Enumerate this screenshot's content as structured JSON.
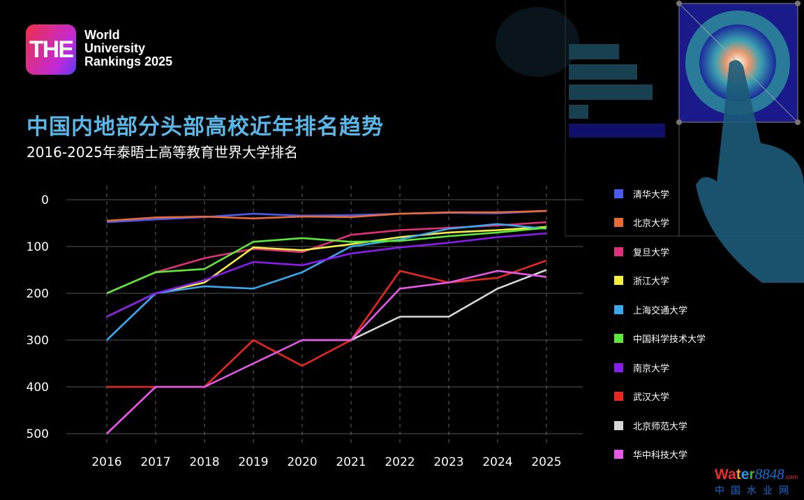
{
  "logo": {
    "mark": "THE",
    "line1": "World",
    "line2": "University",
    "line3": "Rankings 2025"
  },
  "header": {
    "title": "中国内地部分头部高校近年排名趋势",
    "subtitle": "2016-2025年泰晤士高等教育世界大学排名"
  },
  "watermark": {
    "brand": "Water8848",
    "suffix": ".com",
    "cn": "中国水业网"
  },
  "chart_data": {
    "type": "line",
    "title": "中国内地部分头部高校近年排名趋势",
    "subtitle": "2016-2025年泰晤士高等教育世界大学排名",
    "x": [
      "2016",
      "2017",
      "2018",
      "2019",
      "2020",
      "2021",
      "2022",
      "2023",
      "2024",
      "2025"
    ],
    "ylim": [
      0,
      500
    ],
    "y_inverted": true,
    "yticks": [
      "0",
      "100",
      "200",
      "300",
      "400",
      "500"
    ],
    "ytick_values": [
      0,
      100,
      200,
      300,
      400,
      500
    ],
    "grid": "horizontal solid, vertical dashed",
    "legend": "right",
    "series": [
      {
        "name": "清华大学",
        "color": "#4a5cf0",
        "values": [
          48,
          42,
          37,
          30,
          34,
          33,
          30,
          28,
          29,
          24
        ]
      },
      {
        "name": "北京大学",
        "color": "#ee6a35",
        "values": [
          45,
          38,
          36,
          40,
          36,
          37,
          30,
          27,
          27,
          24
        ]
      },
      {
        "name": "复旦大学",
        "color": "#e0307a",
        "values": [
          200,
          155,
          125,
          105,
          112,
          75,
          65,
          60,
          55,
          48
        ]
      },
      {
        "name": "浙江大学",
        "color": "#f4f040",
        "values": [
          250,
          200,
          177,
          102,
          108,
          95,
          80,
          70,
          65,
          58
        ]
      },
      {
        "name": "上海交通大学",
        "color": "#3aa8f0",
        "values": [
          300,
          200,
          185,
          190,
          155,
          100,
          85,
          62,
          52,
          62
        ]
      },
      {
        "name": "中国科学技术大学",
        "color": "#5ee83a",
        "values": [
          200,
          155,
          148,
          90,
          82,
          90,
          88,
          78,
          70,
          60
        ]
      },
      {
        "name": "南京大学",
        "color": "#8a1cf0",
        "values": [
          250,
          200,
          172,
          133,
          140,
          115,
          102,
          92,
          80,
          72
        ]
      },
      {
        "name": "武汉大学",
        "color": "#e8281e",
        "values": [
          400,
          400,
          400,
          300,
          355,
          300,
          152,
          177,
          167,
          130
        ]
      },
      {
        "name": "北京师范大学",
        "color": "#d8d8d8",
        "values": [
          null,
          null,
          null,
          null,
          300,
          300,
          250,
          250,
          190,
          150
        ]
      },
      {
        "name": "华中科技大学",
        "color": "#e858e8",
        "values": [
          500,
          400,
          400,
          350,
          300,
          300,
          190,
          177,
          152,
          165
        ]
      }
    ]
  }
}
